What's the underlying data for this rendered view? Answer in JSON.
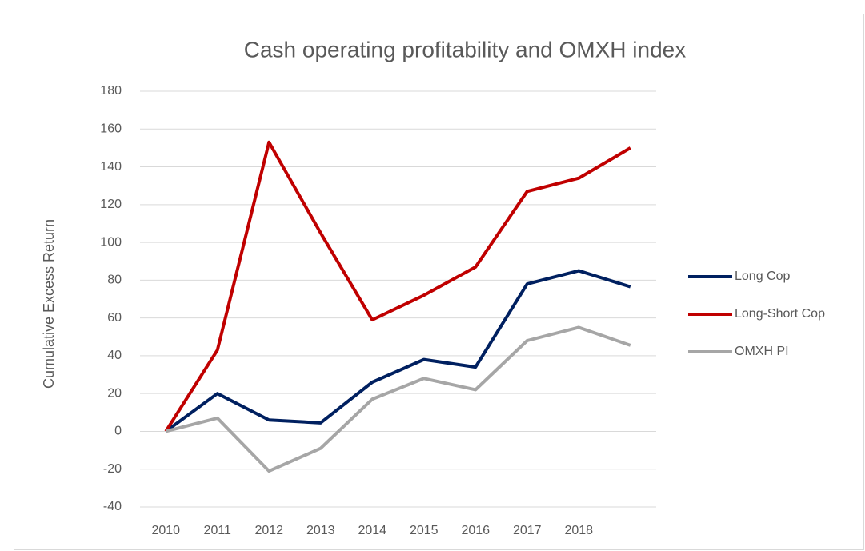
{
  "chart_data": {
    "type": "line",
    "title": "Cash operating profitability and OMXH index",
    "y_label": "Cumulative Excess Return",
    "categories": [
      "2010",
      "2011",
      "2012",
      "2013",
      "2014",
      "2015",
      "2016",
      "2017",
      "2018",
      null
    ],
    "series": [
      {
        "name": "Long Cop",
        "color": "#002060",
        "values": [
          0,
          20,
          6,
          4.5,
          26,
          38,
          34,
          78,
          85,
          76.5
        ]
      },
      {
        "name": "Long-Short Cop",
        "color": "#c00000",
        "values": [
          0,
          43,
          153,
          105,
          59,
          72,
          87,
          127,
          134,
          150
        ]
      },
      {
        "name": "OMXH PI",
        "color": "#a6a6a6",
        "values": [
          0,
          7,
          -21,
          -9,
          17,
          28,
          22,
          48,
          55,
          45.5
        ]
      }
    ],
    "ylim": [
      -40,
      180
    ],
    "yticks": [
      -40,
      -20,
      0,
      20,
      40,
      60,
      80,
      100,
      120,
      140,
      160,
      180
    ],
    "grid": true,
    "legend": "right"
  }
}
